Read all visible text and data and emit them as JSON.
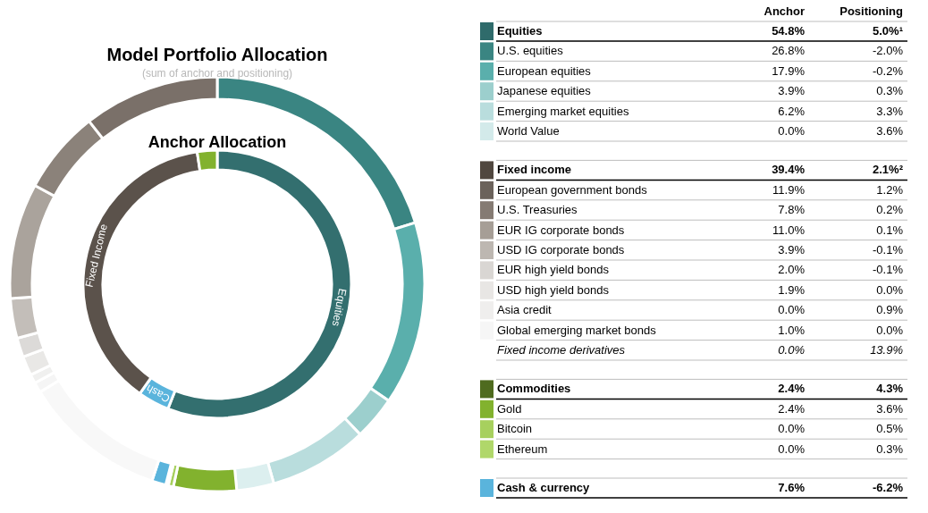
{
  "chart_data": [
    {
      "type": "donut",
      "title": "Model Portfolio Allocation",
      "subtitle": "(sum of anchor and positioning)",
      "annotations": [
        "Equities",
        "Cash",
        "Fixed Income"
      ],
      "series": [
        {
          "values": [
            20.2,
            14.3,
            3.4,
            7.7,
            2.9,
            4.9,
            0.4,
            0.2,
            1.1,
            11.2,
            0.8,
            0.7,
            1.5,
            1.5,
            3.1,
            9.0,
            6.5,
            10.6
          ],
          "colors": [
            "#3a8582",
            "#5aafac",
            "#9ccfcd",
            "#b9dddd",
            "#dcefef",
            "#82b22e",
            "#a7d05e",
            "#b9da80",
            "#5ab4dc",
            "#f8f8f8",
            "#f5f5f5",
            "#f0f0ef",
            "#e9e8e6",
            "#dcdad8",
            "#c3beb9",
            "#aaa39c",
            "#8b827a",
            "#7a7069"
          ]
        },
        {
          "name": "Anchor Allocation",
          "values": [
            56.0,
            3.8,
            37.8,
            2.4
          ],
          "colors": [
            "#336f6f",
            "#5ab4dc",
            "#5b524b",
            "#82b22e"
          ]
        }
      ]
    },
    {
      "type": "other",
      "data_labels": true,
      "categories": [
        "Equities",
        "U.S. equities",
        "European equities",
        "Japanese equities",
        "Emerging market equities",
        "World Value"
      ],
      "colors": [
        "#2f6b6b",
        "#3a8582",
        "#5aafac",
        "#9ccfcd",
        "#b9dddd",
        "#d3eaea"
      ],
      "series": [
        {
          "name": "Anchor",
          "values": [
            54.8,
            26.8,
            17.9,
            3.9,
            6.2,
            0.0
          ],
          "value_labels": [
            "54.8%",
            "26.8%",
            "17.9%",
            "3.9%",
            "6.2%",
            "0.0%"
          ]
        },
        {
          "name": "Positioning",
          "values": [
            5.0,
            -2.0,
            -0.2,
            0.3,
            3.3,
            3.6
          ],
          "value_labels": [
            "5.0%¹",
            "-2.0%",
            "-0.2%",
            "0.3%",
            "3.3%",
            "3.6%"
          ]
        }
      ]
    },
    {
      "type": "other",
      "data_labels": true,
      "categories": [
        "Fixed income",
        "European government bonds",
        "U.S. Treasuries",
        "EUR IG corporate bonds",
        "USD IG corporate bonds",
        "EUR high yield bonds",
        "USD high yield bonds",
        "Asia credit",
        "Global emerging market bonds",
        "Fixed income derivatives"
      ],
      "colors": [
        "#50473f",
        "#6b625b",
        "#857b73",
        "#a69e96",
        "#bdb7b1",
        "#d9d6d3",
        "#e8e6e4",
        "#efeeed",
        "#f6f6f6",
        null
      ],
      "series": [
        {
          "values": [
            39.4,
            11.9,
            7.8,
            11.0,
            3.9,
            2.0,
            1.9,
            0.0,
            1.0,
            0.0
          ],
          "value_labels": [
            "39.4%",
            "11.9%",
            "7.8%",
            "11.0%",
            "3.9%",
            "2.0%",
            "1.9%",
            "0.0%",
            "1.0%",
            "0.0%"
          ]
        },
        {
          "values": [
            2.1,
            1.2,
            0.2,
            0.1,
            -0.1,
            -0.1,
            0.0,
            0.9,
            0.0,
            13.9
          ],
          "value_labels": [
            "2.1%²",
            "1.2%",
            "0.2%",
            "0.1%",
            "-0.1%",
            "-0.1%",
            "0.0%",
            "0.9%",
            "0.0%",
            "13.9%"
          ]
        }
      ]
    },
    {
      "type": "other",
      "data_labels": true,
      "categories": [
        "Commodities",
        "Gold",
        "Bitcoin",
        "Ethereum"
      ],
      "colors": [
        "#4f6b1f",
        "#82b22e",
        "#a7d05e",
        "#b0d76a"
      ],
      "series": [
        {
          "values": [
            2.4,
            2.4,
            0.0,
            0.0
          ],
          "value_labels": [
            "2.4%",
            "2.4%",
            "0.0%",
            "0.0%"
          ]
        },
        {
          "values": [
            4.3,
            3.6,
            0.5,
            0.3
          ],
          "value_labels": [
            "4.3%",
            "3.6%",
            "0.5%",
            "0.3%"
          ]
        }
      ]
    },
    {
      "type": "other",
      "data_labels": true,
      "categories": [
        "Cash & currency"
      ],
      "colors": [
        "#5ab4dc"
      ],
      "series": [
        {
          "values": [
            7.6
          ],
          "value_labels": [
            "7.6%"
          ]
        },
        {
          "values": [
            -6.2
          ],
          "value_labels": [
            "-6.2%"
          ]
        }
      ]
    }
  ]
}
